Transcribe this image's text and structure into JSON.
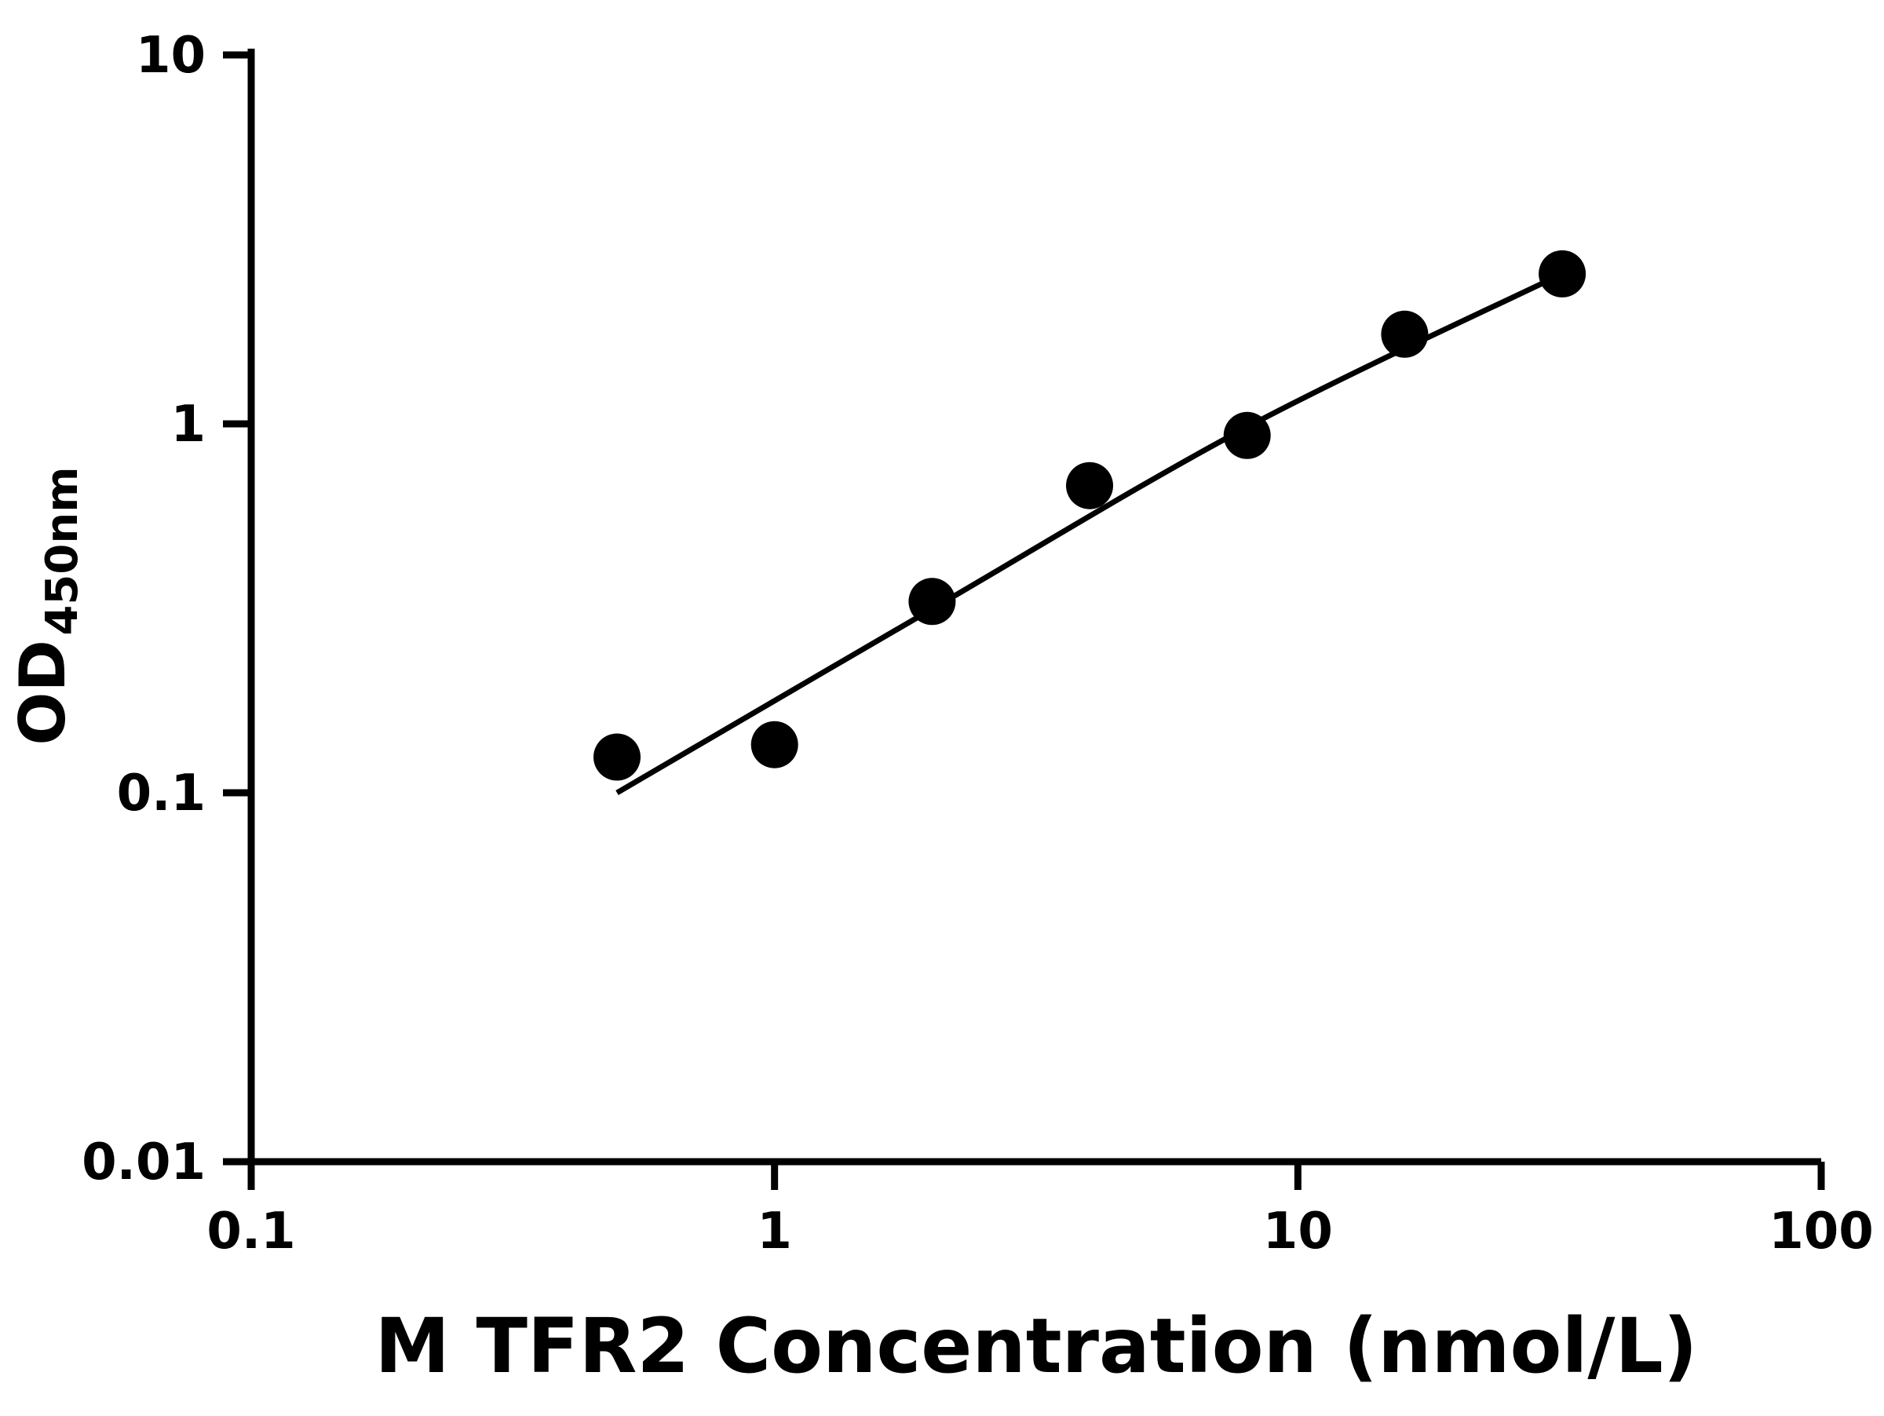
{
  "chart_data": {
    "type": "scatter",
    "title": "",
    "xlabel": "M TFR2 Concentration (nmol/L)",
    "ylabel_main": "OD",
    "ylabel_sub": "450nm",
    "x_scale": "log",
    "y_scale": "log",
    "xlim": [
      0.1,
      100
    ],
    "ylim": [
      0.01,
      10
    ],
    "grid": false,
    "legend": "none",
    "x_ticks": [
      {
        "value": 0.1,
        "label": "0.1"
      },
      {
        "value": 1,
        "label": "1"
      },
      {
        "value": 10,
        "label": "10"
      },
      {
        "value": 100,
        "label": "100"
      }
    ],
    "y_ticks": [
      {
        "value": 0.01,
        "label": "0.01"
      },
      {
        "value": 0.1,
        "label": "0.1"
      },
      {
        "value": 1,
        "label": "1"
      },
      {
        "value": 10,
        "label": "10"
      }
    ],
    "points": [
      {
        "x": 0.5,
        "y": 0.125
      },
      {
        "x": 1,
        "y": 0.135
      },
      {
        "x": 2,
        "y": 0.33
      },
      {
        "x": 4,
        "y": 0.68
      },
      {
        "x": 8,
        "y": 0.93
      },
      {
        "x": 16,
        "y": 1.75
      },
      {
        "x": 32,
        "y": 2.55
      }
    ],
    "fit_line": [
      {
        "x": 0.5,
        "y": 0.1
      },
      {
        "x": 2,
        "y": 0.315
      },
      {
        "x": 8,
        "y": 0.98
      },
      {
        "x": 32,
        "y": 2.55
      }
    ],
    "marker_color": "#000000",
    "line_color": "#000000"
  }
}
